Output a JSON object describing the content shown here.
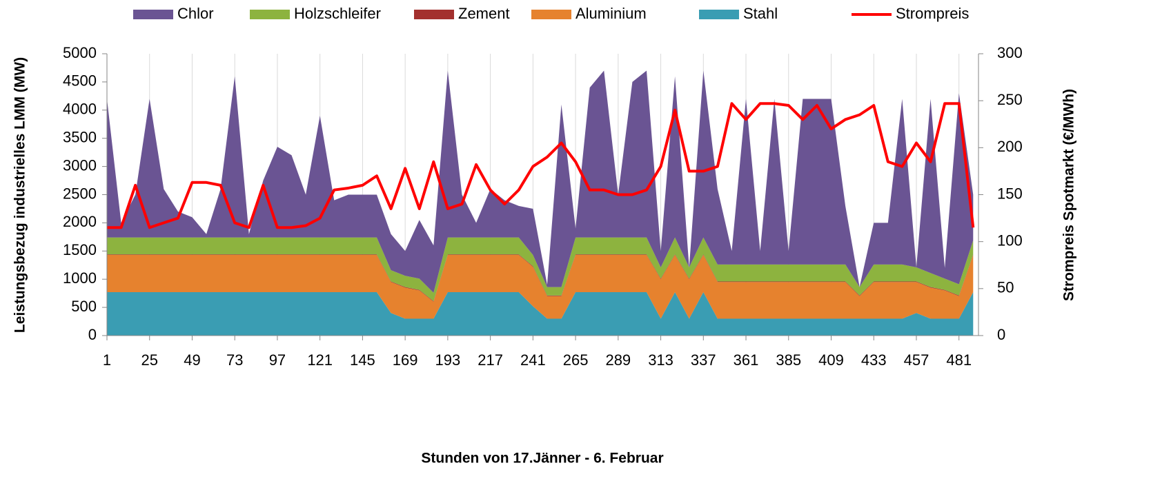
{
  "chart_data": {
    "type": "stacked_area",
    "x_label": "Stunden von 17.Jänner - 6. Februar",
    "y_label": "Leistungsbezug industrielles LMM (MW)",
    "y2_label": "Strompreis Spotmarkt (€/MWh)",
    "x": [
      1,
      9,
      17,
      25,
      33,
      41,
      49,
      57,
      65,
      73,
      81,
      89,
      97,
      105,
      113,
      121,
      129,
      137,
      145,
      153,
      161,
      169,
      177,
      185,
      193,
      201,
      209,
      217,
      225,
      233,
      241,
      249,
      257,
      265,
      273,
      281,
      289,
      297,
      305,
      313,
      321,
      329,
      337,
      345,
      353,
      361,
      369,
      377,
      385,
      393,
      401,
      409,
      417,
      425,
      433,
      441,
      449,
      457,
      465,
      473,
      481,
      489
    ],
    "xlim": [
      1,
      492
    ],
    "xticks": [
      1,
      25,
      49,
      73,
      97,
      121,
      145,
      169,
      193,
      217,
      241,
      265,
      289,
      313,
      337,
      361,
      385,
      409,
      433,
      457,
      481
    ],
    "ylim": [
      0,
      5000
    ],
    "yticks": [
      0,
      500,
      1000,
      1500,
      2000,
      2500,
      3000,
      3500,
      4000,
      4500,
      5000
    ],
    "y2lim": [
      0,
      300
    ],
    "y2ticks": [
      0,
      50,
      100,
      150,
      200,
      250,
      300
    ],
    "grid": true,
    "legend": "top",
    "series": [
      {
        "name": "Chlor",
        "color": "#6a5493",
        "values": [
          2460,
          260,
          760,
          2460,
          860,
          460,
          360,
          60,
          860,
          2860,
          60,
          1010,
          1610,
          1460,
          760,
          2160,
          660,
          760,
          760,
          760,
          640,
          440,
          1040,
          840,
          2960,
          760,
          260,
          860,
          660,
          560,
          820,
          40,
          3240,
          160,
          2660,
          2960,
          760,
          2760,
          2960,
          290,
          2860,
          0,
          2960,
          1340,
          240,
          2940,
          240,
          2940,
          240,
          2940,
          2940,
          2940,
          1040,
          0,
          740,
          740,
          2940,
          0,
          3090,
          190,
          3390,
          810
        ]
      },
      {
        "name": "Holzschleifer",
        "color": "#8db33f",
        "values": [
          300,
          300,
          300,
          300,
          300,
          300,
          300,
          300,
          300,
          300,
          300,
          300,
          300,
          300,
          300,
          300,
          300,
          300,
          300,
          300,
          200,
          200,
          200,
          150,
          300,
          300,
          300,
          300,
          300,
          300,
          200,
          150,
          150,
          300,
          300,
          300,
          300,
          300,
          300,
          200,
          300,
          200,
          300,
          300,
          300,
          300,
          300,
          300,
          300,
          300,
          300,
          300,
          300,
          150,
          300,
          300,
          300,
          250,
          250,
          200,
          200,
          250
        ]
      },
      {
        "name": "Zement",
        "color": "#a3302e",
        "values": [
          10,
          10,
          10,
          10,
          10,
          10,
          10,
          10,
          10,
          10,
          10,
          10,
          10,
          10,
          10,
          10,
          10,
          10,
          10,
          10,
          10,
          10,
          10,
          10,
          10,
          10,
          10,
          10,
          10,
          10,
          10,
          10,
          10,
          10,
          10,
          10,
          10,
          10,
          10,
          10,
          10,
          10,
          10,
          10,
          10,
          10,
          10,
          10,
          10,
          10,
          10,
          10,
          10,
          10,
          10,
          10,
          10,
          10,
          10,
          10,
          10,
          10
        ]
      },
      {
        "name": "Aluminium",
        "color": "#e6822e",
        "values": [
          660,
          660,
          660,
          660,
          660,
          660,
          660,
          660,
          660,
          660,
          660,
          660,
          660,
          660,
          660,
          660,
          660,
          660,
          660,
          660,
          550,
          550,
          500,
          300,
          660,
          660,
          660,
          660,
          660,
          660,
          700,
          400,
          400,
          660,
          660,
          660,
          660,
          660,
          660,
          700,
          660,
          700,
          660,
          650,
          650,
          650,
          650,
          650,
          650,
          650,
          650,
          650,
          650,
          400,
          650,
          650,
          650,
          550,
          550,
          500,
          400,
          660
        ]
      },
      {
        "name": "Stahl",
        "color": "#3a9db3",
        "values": [
          770,
          770,
          770,
          770,
          770,
          770,
          770,
          770,
          770,
          770,
          770,
          770,
          770,
          770,
          770,
          770,
          770,
          770,
          770,
          770,
          400,
          300,
          300,
          300,
          770,
          770,
          770,
          770,
          770,
          770,
          520,
          300,
          300,
          770,
          770,
          770,
          770,
          770,
          770,
          300,
          770,
          300,
          770,
          300,
          300,
          300,
          300,
          300,
          300,
          300,
          300,
          300,
          300,
          300,
          300,
          300,
          300,
          400,
          300,
          300,
          300,
          770
        ]
      },
      {
        "name": "Strompreis",
        "color": "#ff0000",
        "axis": "y2",
        "values": [
          115,
          115,
          160,
          115,
          120,
          125,
          163,
          163,
          160,
          120,
          115,
          160,
          115,
          115,
          117,
          125,
          155,
          157,
          160,
          170,
          135,
          178,
          135,
          185,
          135,
          140,
          182,
          155,
          140,
          155,
          180,
          190,
          205,
          185,
          155,
          155,
          150,
          150,
          155,
          180,
          240,
          175,
          175,
          180,
          247,
          230,
          247,
          247,
          245,
          230,
          245,
          220,
          230,
          235,
          245,
          185,
          180,
          205,
          185,
          247,
          247,
          115
        ]
      }
    ]
  }
}
